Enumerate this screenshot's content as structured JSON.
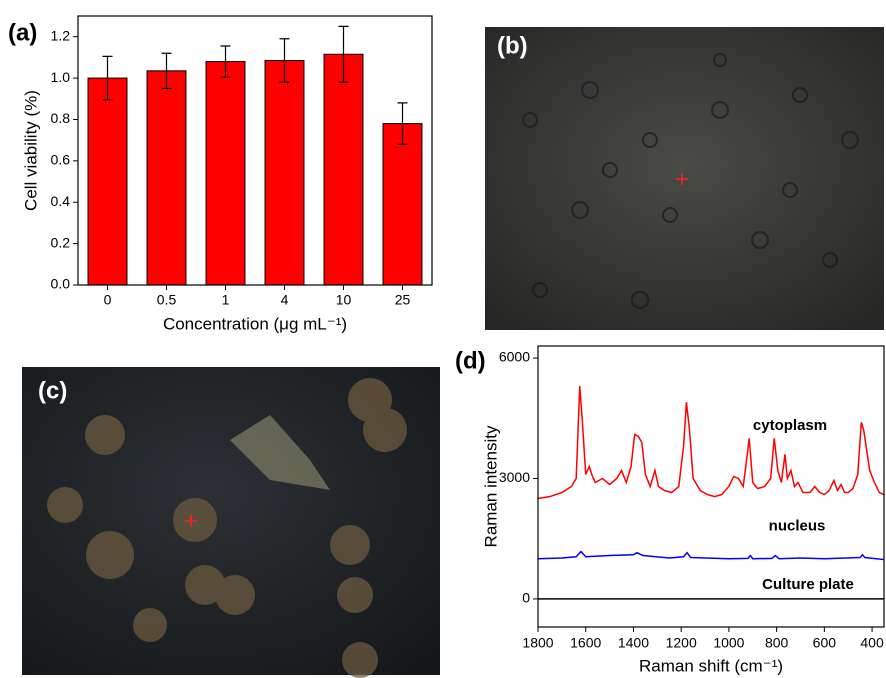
{
  "images": [
    {
      "label": "(b)"
    },
    {
      "label": "(c)"
    }
  ],
  "chart_data": [
    {
      "type": "bar",
      "panel_label": "(a)",
      "ylabel": "Cell viability (%)",
      "xlabel": "Concentration (μg mL⁻¹)",
      "categories": [
        "0",
        "0.5",
        "1",
        "4",
        "10",
        "25"
      ],
      "values": [
        1.0,
        1.035,
        1.08,
        1.085,
        1.115,
        0.78
      ],
      "errors": [
        0.105,
        0.085,
        0.075,
        0.105,
        0.135,
        0.1
      ],
      "color": "#ff0000",
      "ylim": [
        0,
        1.3
      ],
      "yticks": [
        {
          "value": 0,
          "label": "0.0"
        },
        0.2,
        0.4,
        0.6,
        0.8,
        {
          "value": 1,
          "label": "1.0"
        },
        1.2
      ]
    },
    {
      "type": "line",
      "panel_label": "(d)",
      "ylabel": "Raman intensity",
      "xlabel": "Raman shift (cm⁻¹)",
      "xlim": [
        1800,
        350
      ],
      "xticks": [
        1800,
        1600,
        1400,
        1200,
        1000,
        800,
        600,
        400
      ],
      "ylim": [
        -700,
        6300
      ],
      "yticks": [
        0,
        3000,
        6000
      ],
      "series": [
        {
          "name": "cytoplasm",
          "color": "#ff0000",
          "x": [
            1800,
            1750,
            1700,
            1660,
            1640,
            1625,
            1615,
            1600,
            1585,
            1575,
            1560,
            1530,
            1500,
            1470,
            1450,
            1430,
            1410,
            1395,
            1380,
            1365,
            1350,
            1330,
            1310,
            1295,
            1270,
            1240,
            1210,
            1190,
            1178,
            1165,
            1150,
            1120,
            1090,
            1060,
            1030,
            1000,
            980,
            960,
            940,
            925,
            915,
            900,
            880,
            850,
            825,
            810,
            795,
            780,
            765,
            755,
            740,
            725,
            710,
            690,
            660,
            640,
            620,
            600,
            580,
            560,
            545,
            530,
            515,
            500,
            480,
            460,
            445,
            435,
            425,
            410,
            390,
            370,
            350
          ],
          "values": [
            2500,
            2550,
            2650,
            2800,
            3000,
            5300,
            4500,
            3100,
            3300,
            3100,
            2900,
            3000,
            2850,
            3000,
            3200,
            2900,
            3300,
            4100,
            4050,
            3900,
            3100,
            2800,
            3200,
            2800,
            2700,
            2650,
            2800,
            3800,
            4900,
            4200,
            3000,
            2700,
            2600,
            2550,
            2600,
            2800,
            3050,
            3000,
            2800,
            3500,
            4000,
            2900,
            2750,
            2800,
            3000,
            4000,
            3200,
            2900,
            3600,
            3000,
            3200,
            2800,
            2900,
            2650,
            2650,
            2800,
            2650,
            2600,
            2700,
            2950,
            2700,
            2850,
            2650,
            2650,
            2750,
            3100,
            4400,
            4200,
            3800,
            3200,
            2900,
            2650,
            2600
          ]
        },
        {
          "name": "nucleus",
          "color": "#0000ff",
          "x": [
            1800,
            1700,
            1640,
            1620,
            1600,
            1500,
            1400,
            1385,
            1360,
            1250,
            1190,
            1175,
            1160,
            1000,
            920,
            910,
            900,
            820,
            805,
            790,
            700,
            600,
            450,
            440,
            430,
            350
          ],
          "values": [
            1000,
            1020,
            1050,
            1180,
            1050,
            1080,
            1100,
            1150,
            1080,
            1020,
            1050,
            1150,
            1030,
            1000,
            1010,
            1080,
            1000,
            1010,
            1080,
            1000,
            1020,
            1000,
            1030,
            1100,
            1030,
            980
          ]
        },
        {
          "name": "Culture plate",
          "color": "#000000",
          "x": [
            1800,
            350
          ],
          "values": [
            0,
            0
          ]
        }
      ]
    }
  ]
}
